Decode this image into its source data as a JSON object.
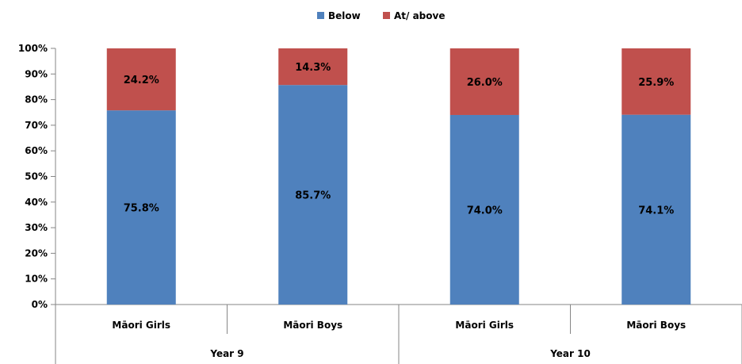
{
  "chart_data": {
    "type": "bar",
    "stacked": true,
    "categories": [
      "Māori Girls",
      "Māori Boys",
      "Māori Girls",
      "Māori Boys"
    ],
    "groups": [
      {
        "label": "Year 9",
        "categories": [
          0,
          1
        ]
      },
      {
        "label": "Year 10",
        "categories": [
          2,
          3
        ]
      }
    ],
    "series": [
      {
        "name": "Below",
        "color": "#4f81bd",
        "values": [
          75.8,
          85.7,
          74.0,
          74.1
        ],
        "labels": [
          "75.8%",
          "85.7%",
          "74.0%",
          "74.1%"
        ]
      },
      {
        "name": "At/ above",
        "color": "#c0504d",
        "values": [
          24.2,
          14.3,
          26.0,
          25.9
        ],
        "labels": [
          "24.2%",
          "14.3%",
          "26.0%",
          "25.9%"
        ]
      }
    ],
    "ylim": [
      0,
      100
    ],
    "yticks": [
      "0%",
      "10%",
      "20%",
      "30%",
      "40%",
      "50%",
      "60%",
      "70%",
      "80%",
      "90%",
      "100%"
    ],
    "legend_position": "top-center",
    "grid": false
  }
}
